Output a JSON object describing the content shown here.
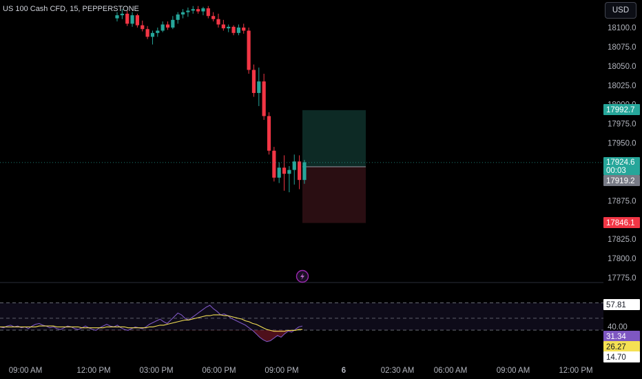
{
  "header": {
    "symbol_title": "US 100 Cash CFD, 15, PEPPERSTONE"
  },
  "currency_button": "USD",
  "colors": {
    "up": "#26a69a",
    "down": "#f23645",
    "rsi_line": "#7e57c2",
    "rsi_ma": "#f5e154",
    "profit_zone": "#0d2a25",
    "loss_zone": "#2a0e12"
  },
  "icons": {
    "event_marker": "lightning-icon"
  },
  "price_tags": {
    "target": "17992.7",
    "last_price": "17924.6",
    "countdown": "00:03",
    "entry": "17919.2",
    "stop": "17846.1"
  },
  "rsi_tags": {
    "upper": "57.81",
    "rsi_value": "31.34",
    "ma_value": "26.27",
    "lower": "14.70",
    "level_40": "40.00"
  },
  "chart_data": {
    "type": "candlestick",
    "title": "US 100 Cash CFD, 15, PEPPERSTONE",
    "y_range": [
      17765,
      18130
    ],
    "y_ticks": [
      {
        "value": 18100.0,
        "label": "18100.0"
      },
      {
        "value": 18075.0,
        "label": "18075.0"
      },
      {
        "value": 18050.0,
        "label": "18050.0"
      },
      {
        "value": 18025.0,
        "label": "18025.0"
      },
      {
        "value": 18000.0,
        "label": "18000.0"
      },
      {
        "value": 17975.0,
        "label": "17975.0"
      },
      {
        "value": 17950.0,
        "label": "17950.0"
      },
      {
        "value": 17875.0,
        "label": "17875.0"
      },
      {
        "value": 17825.0,
        "label": "17825.0"
      },
      {
        "value": 17800.0,
        "label": "17800.0"
      },
      {
        "value": 17775.0,
        "label": "17775.0"
      }
    ],
    "x_ticks": [
      "09:00 AM",
      "12:00 PM",
      "03:00 PM",
      "06:00 PM",
      "09:00 PM",
      "6",
      "02:30 AM",
      "06:00 AM",
      "09:00 AM",
      "12:00 PM"
    ],
    "candles": [
      {
        "o": 18112,
        "h": 18120,
        "l": 18108,
        "c": 18116
      },
      {
        "o": 18116,
        "h": 18124,
        "l": 18111,
        "c": 18118
      },
      {
        "o": 18118,
        "h": 18122,
        "l": 18102,
        "c": 18105
      },
      {
        "o": 18105,
        "h": 18120,
        "l": 18101,
        "c": 18116
      },
      {
        "o": 18116,
        "h": 18118,
        "l": 18100,
        "c": 18103
      },
      {
        "o": 18103,
        "h": 18109,
        "l": 18095,
        "c": 18098
      },
      {
        "o": 18098,
        "h": 18102,
        "l": 18085,
        "c": 18088
      },
      {
        "o": 18088,
        "h": 18096,
        "l": 18078,
        "c": 18093
      },
      {
        "o": 18093,
        "h": 18100,
        "l": 18088,
        "c": 18096
      },
      {
        "o": 18096,
        "h": 18108,
        "l": 18094,
        "c": 18104
      },
      {
        "o": 18104,
        "h": 18108,
        "l": 18097,
        "c": 18100
      },
      {
        "o": 18100,
        "h": 18115,
        "l": 18098,
        "c": 18110
      },
      {
        "o": 18110,
        "h": 18120,
        "l": 18105,
        "c": 18117
      },
      {
        "o": 18117,
        "h": 18124,
        "l": 18112,
        "c": 18120
      },
      {
        "o": 18120,
        "h": 18126,
        "l": 18114,
        "c": 18122
      },
      {
        "o": 18122,
        "h": 18128,
        "l": 18118,
        "c": 18124
      },
      {
        "o": 18124,
        "h": 18128,
        "l": 18118,
        "c": 18121
      },
      {
        "o": 18121,
        "h": 18127,
        "l": 18116,
        "c": 18125
      },
      {
        "o": 18125,
        "h": 18128,
        "l": 18112,
        "c": 18115
      },
      {
        "o": 18115,
        "h": 18120,
        "l": 18108,
        "c": 18111
      },
      {
        "o": 18111,
        "h": 18118,
        "l": 18100,
        "c": 18104
      },
      {
        "o": 18104,
        "h": 18110,
        "l": 18096,
        "c": 18099
      },
      {
        "o": 18099,
        "h": 18104,
        "l": 18094,
        "c": 18101
      },
      {
        "o": 18101,
        "h": 18103,
        "l": 18090,
        "c": 18093
      },
      {
        "o": 18093,
        "h": 18104,
        "l": 18090,
        "c": 18100
      },
      {
        "o": 18100,
        "h": 18105,
        "l": 18092,
        "c": 18096
      },
      {
        "o": 18096,
        "h": 18100,
        "l": 18040,
        "c": 18045
      },
      {
        "o": 18045,
        "h": 18052,
        "l": 18010,
        "c": 18015
      },
      {
        "o": 18015,
        "h": 18048,
        "l": 17998,
        "c": 18030
      },
      {
        "o": 18030,
        "h": 18040,
        "l": 17980,
        "c": 17985
      },
      {
        "o": 17985,
        "h": 17990,
        "l": 17935,
        "c": 17940
      },
      {
        "o": 17940,
        "h": 17945,
        "l": 17900,
        "c": 17905
      },
      {
        "o": 17905,
        "h": 17925,
        "l": 17898,
        "c": 17918
      },
      {
        "o": 17918,
        "h": 17934,
        "l": 17888,
        "c": 17910
      },
      {
        "o": 17910,
        "h": 17920,
        "l": 17886,
        "c": 17915
      },
      {
        "o": 17915,
        "h": 17935,
        "l": 17896,
        "c": 17926
      },
      {
        "o": 17926,
        "h": 17934,
        "l": 17890,
        "c": 17902
      },
      {
        "o": 17902,
        "h": 17928,
        "l": 17897,
        "c": 17925
      }
    ],
    "position": {
      "target": 17992.7,
      "entry": 17919.2,
      "stop": 17846.1,
      "last_price": 17924.6
    },
    "rsi": {
      "y_range": [
        0,
        75
      ],
      "bands": [
        57.81,
        40.0,
        26.27
      ],
      "rsi_line": [
        30,
        29,
        31,
        32,
        30,
        31,
        29,
        30,
        28,
        31,
        33,
        34,
        32,
        31,
        29,
        30,
        28,
        27,
        29,
        31,
        30,
        28,
        27,
        29,
        31,
        29,
        27,
        26,
        29,
        31,
        33,
        31,
        30,
        32,
        29,
        27,
        26,
        28,
        30,
        29,
        28,
        30,
        33,
        35,
        37,
        39,
        36,
        34,
        38,
        42,
        46,
        44,
        40,
        38,
        41,
        44,
        47,
        50,
        53,
        55,
        51,
        48,
        44,
        45,
        43,
        40,
        38,
        36,
        34,
        32,
        29,
        26,
        22,
        18,
        15,
        13,
        14,
        17,
        20,
        18,
        22,
        25,
        24,
        27,
        30,
        31
      ],
      "ma_line": [
        30,
        30,
        30,
        30,
        30,
        30,
        30,
        30,
        30,
        30,
        30,
        31,
        31,
        31,
        31,
        31,
        30,
        30,
        30,
        30,
        30,
        30,
        30,
        29,
        29,
        29,
        29,
        29,
        29,
        29,
        30,
        30,
        30,
        30,
        30,
        30,
        29,
        29,
        29,
        29,
        29,
        29,
        30,
        30,
        31,
        32,
        32,
        33,
        34,
        35,
        36,
        37,
        38,
        38,
        39,
        40,
        41,
        42,
        43,
        43,
        44,
        44,
        44,
        43,
        43,
        42,
        41,
        40,
        39,
        37,
        36,
        34,
        33,
        31,
        29,
        27,
        26,
        25,
        25,
        25,
        25,
        26,
        26,
        26,
        27,
        27
      ]
    }
  }
}
